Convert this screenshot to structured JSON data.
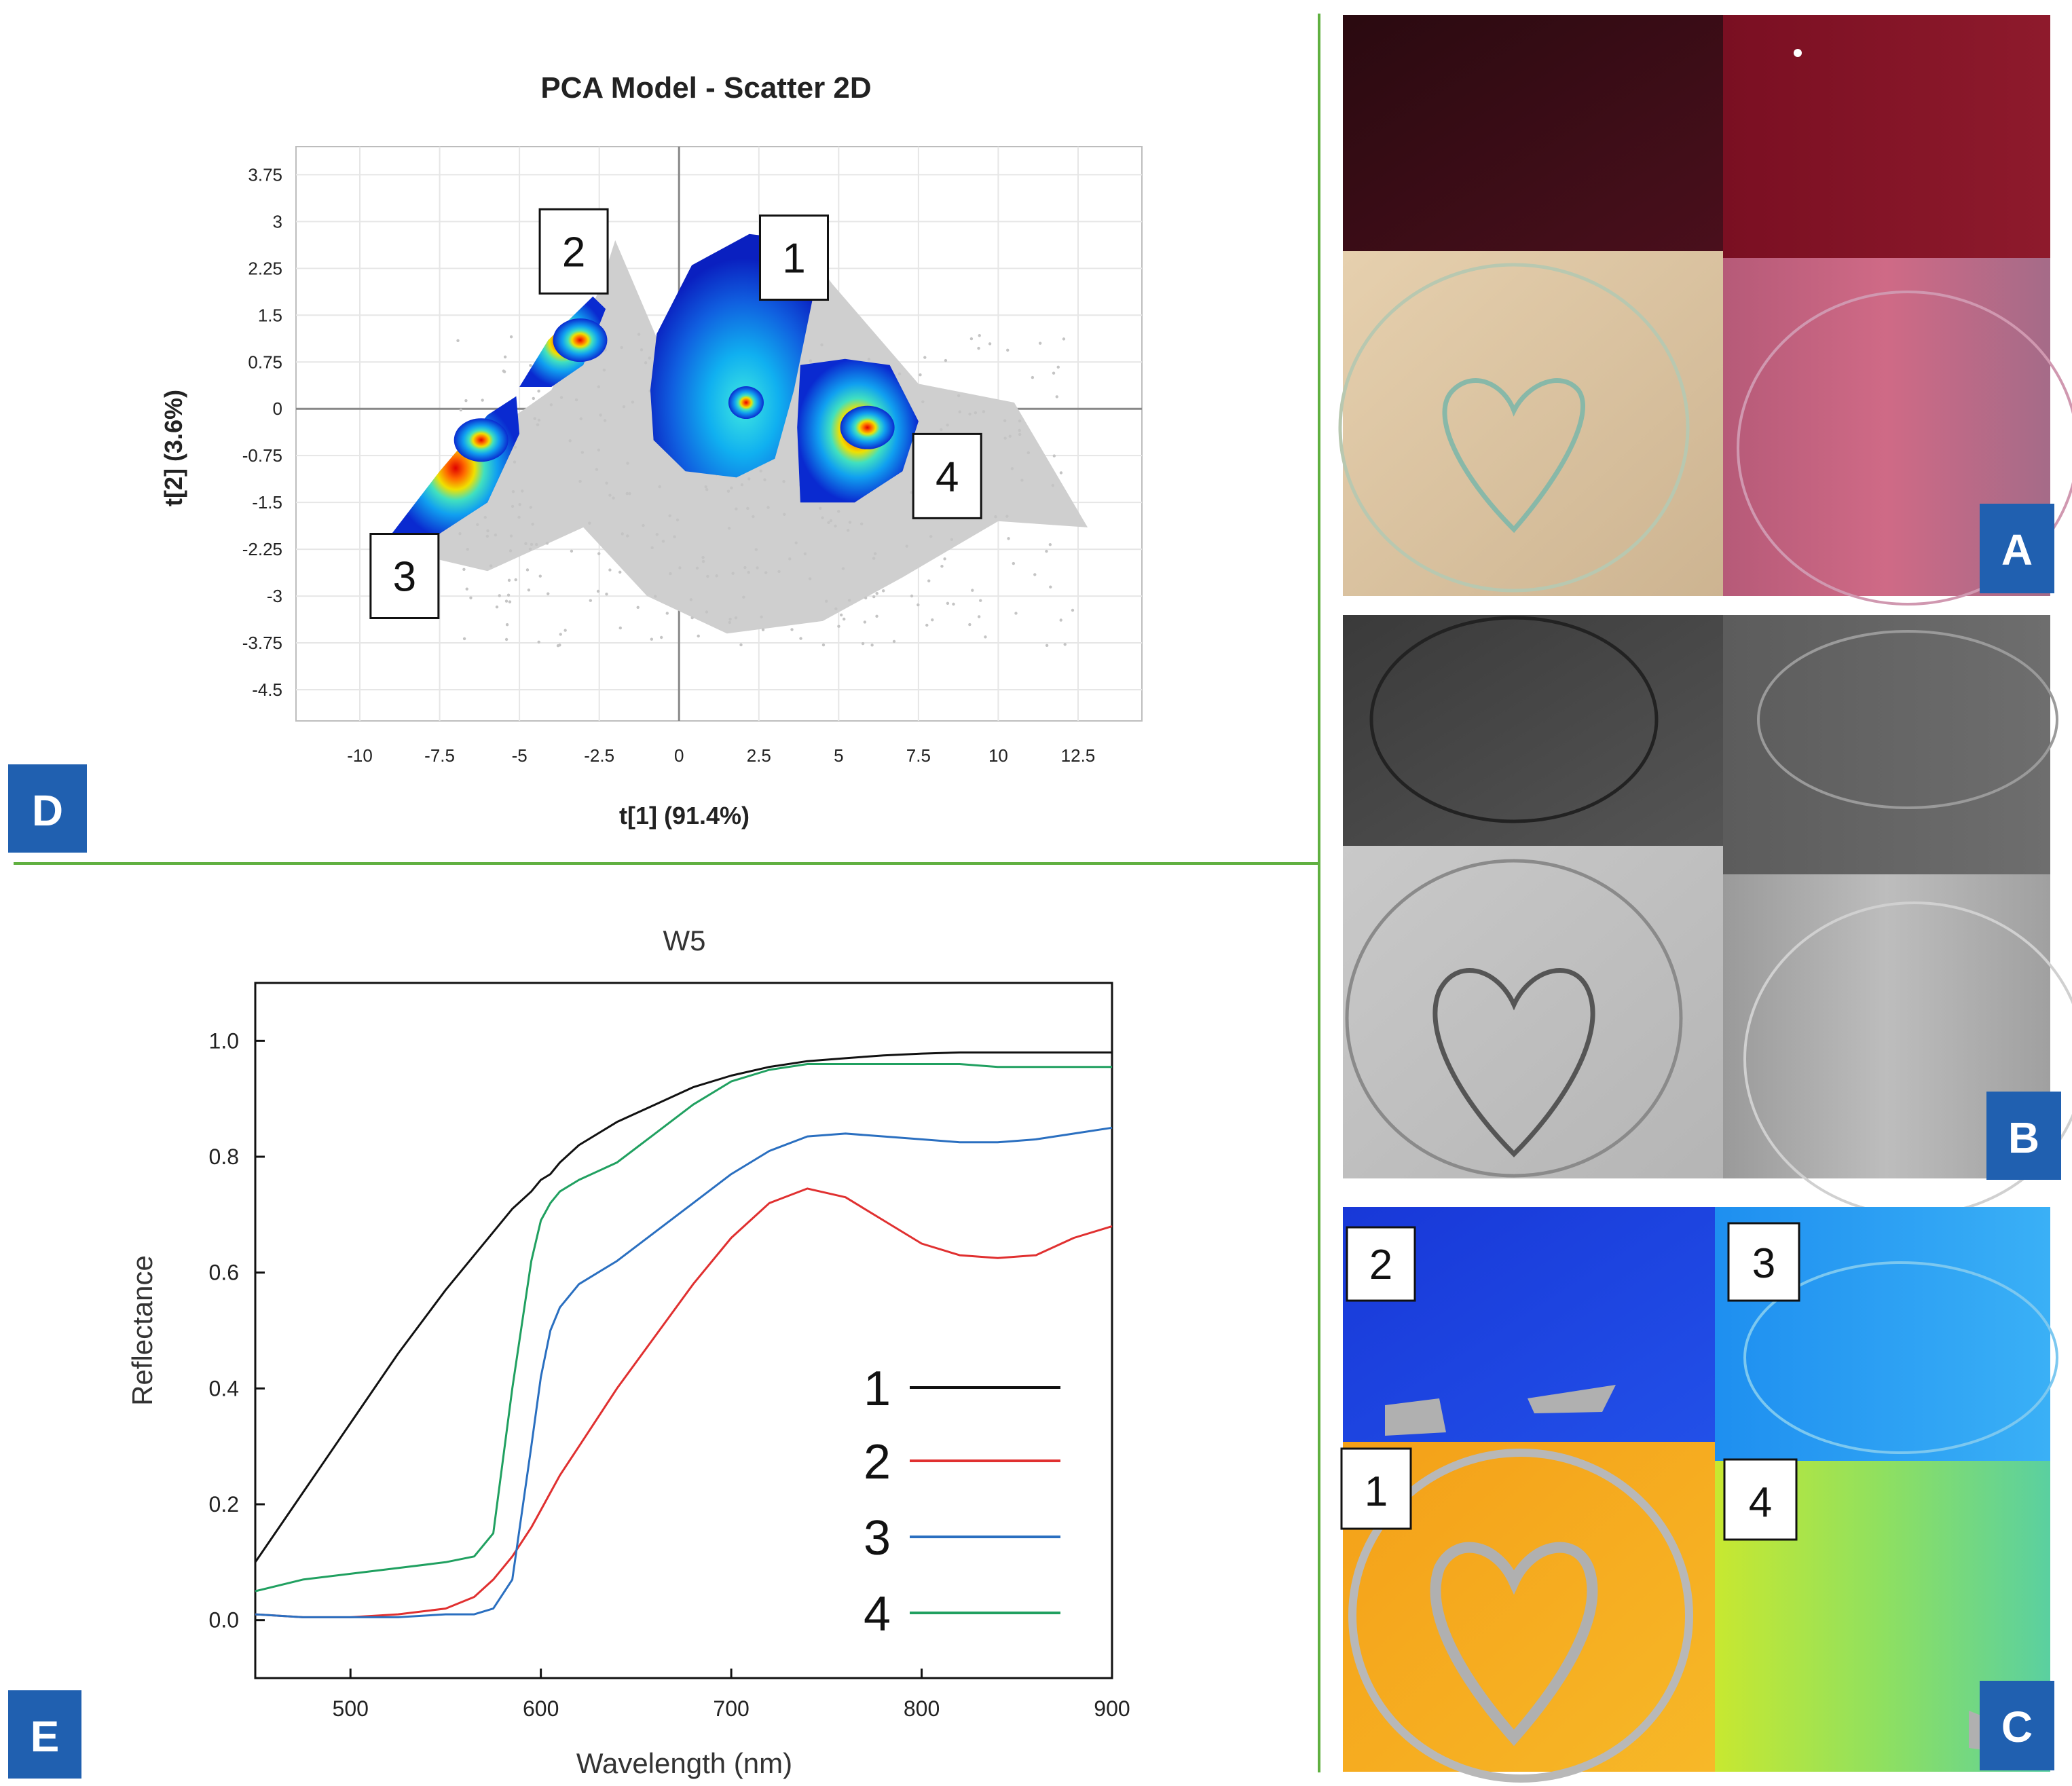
{
  "panels": {
    "A": "A",
    "B": "B",
    "C": "C",
    "D": "D",
    "E": "E"
  },
  "colors": {
    "panel_label_bg": "#2060b0",
    "divider": "#60b040",
    "series_1": "#111111",
    "series_2": "#e03030",
    "series_3": "#2a6fc0",
    "series_4": "#20a060"
  },
  "chart_data": [
    {
      "id": "D",
      "type": "scatter",
      "title": "PCA Model - Scatter 2D",
      "xlabel": "t[1] (91.4%)",
      "ylabel": "t[2] (3.6%)",
      "xlim": [
        -12,
        14.5
      ],
      "ylim": [
        -5,
        4.2
      ],
      "xticks": [
        -10,
        -7.5,
        -5,
        -2.5,
        0,
        2.5,
        5,
        7.5,
        10,
        12.5
      ],
      "xtick_labels": [
        "-10",
        "-7.5",
        "-5",
        "-2.5",
        "0",
        "2.5",
        "5",
        "7.5",
        "10",
        "12.5"
      ],
      "yticks": [
        3.75,
        3,
        2.25,
        1.5,
        0.75,
        0,
        -0.75,
        -1.5,
        -2.25,
        -3,
        -3.75,
        -4.5
      ],
      "ytick_labels": [
        "3.75",
        "3",
        "2.25",
        "1.5",
        "0.75",
        "0",
        "-0.75",
        "-1.5",
        "-2.25",
        "-3",
        "-3.75",
        "-4.5"
      ],
      "grid": true,
      "clusters": [
        {
          "label": "1",
          "center": [
            2.1,
            0.1
          ],
          "label_pos": [
            3.6,
            2.4
          ]
        },
        {
          "label": "2",
          "center": [
            -3.1,
            1.1
          ],
          "label_pos": [
            -3.3,
            2.5
          ]
        },
        {
          "label": "3",
          "center": [
            -6.2,
            -0.5
          ],
          "label_pos": [
            -8.6,
            -2.7
          ]
        },
        {
          "label": "4",
          "center": [
            5.9,
            -0.3
          ],
          "label_pos": [
            8.4,
            -1.1
          ]
        }
      ]
    },
    {
      "id": "E",
      "type": "line",
      "title": "W5",
      "xlabel": "Wavelength (nm)",
      "ylabel": "Reflectance",
      "xlim": [
        450,
        900
      ],
      "ylim": [
        -0.1,
        1.1
      ],
      "xticks": [
        500,
        600,
        700,
        800,
        900
      ],
      "xtick_labels": [
        "500",
        "600",
        "700",
        "800",
        "900"
      ],
      "yticks": [
        0.0,
        0.2,
        0.4,
        0.6,
        0.8,
        1.0
      ],
      "ytick_labels": [
        "0.0",
        "0.2",
        "0.4",
        "0.6",
        "0.8",
        "1.0"
      ],
      "x": [
        450,
        475,
        500,
        525,
        550,
        565,
        575,
        585,
        595,
        600,
        605,
        610,
        620,
        640,
        660,
        680,
        700,
        720,
        740,
        760,
        780,
        800,
        820,
        840,
        860,
        880,
        900
      ],
      "series": [
        {
          "name": "1",
          "values": [
            0.1,
            0.22,
            0.34,
            0.46,
            0.57,
            0.63,
            0.67,
            0.71,
            0.74,
            0.76,
            0.77,
            0.79,
            0.82,
            0.86,
            0.89,
            0.92,
            0.94,
            0.955,
            0.965,
            0.97,
            0.975,
            0.978,
            0.98,
            0.98,
            0.98,
            0.98,
            0.98
          ]
        },
        {
          "name": "2",
          "values": [
            0.01,
            0.005,
            0.005,
            0.01,
            0.02,
            0.04,
            0.07,
            0.11,
            0.16,
            0.19,
            0.22,
            0.25,
            0.3,
            0.4,
            0.49,
            0.58,
            0.66,
            0.72,
            0.745,
            0.73,
            0.69,
            0.65,
            0.63,
            0.625,
            0.63,
            0.66,
            0.68
          ]
        },
        {
          "name": "3",
          "values": [
            0.01,
            0.005,
            0.005,
            0.005,
            0.01,
            0.01,
            0.02,
            0.07,
            0.3,
            0.42,
            0.5,
            0.54,
            0.58,
            0.62,
            0.67,
            0.72,
            0.77,
            0.81,
            0.835,
            0.84,
            0.835,
            0.83,
            0.825,
            0.825,
            0.83,
            0.84,
            0.85
          ]
        },
        {
          "name": "4",
          "values": [
            0.05,
            0.07,
            0.08,
            0.09,
            0.1,
            0.11,
            0.15,
            0.4,
            0.62,
            0.69,
            0.72,
            0.74,
            0.76,
            0.79,
            0.84,
            0.89,
            0.93,
            0.95,
            0.96,
            0.96,
            0.96,
            0.96,
            0.96,
            0.955,
            0.955,
            0.955,
            0.955
          ]
        }
      ],
      "legend": [
        "1",
        "2",
        "3",
        "4"
      ]
    }
  ],
  "photo_labels": {
    "C": [
      "2",
      "3",
      "1",
      "4"
    ]
  }
}
